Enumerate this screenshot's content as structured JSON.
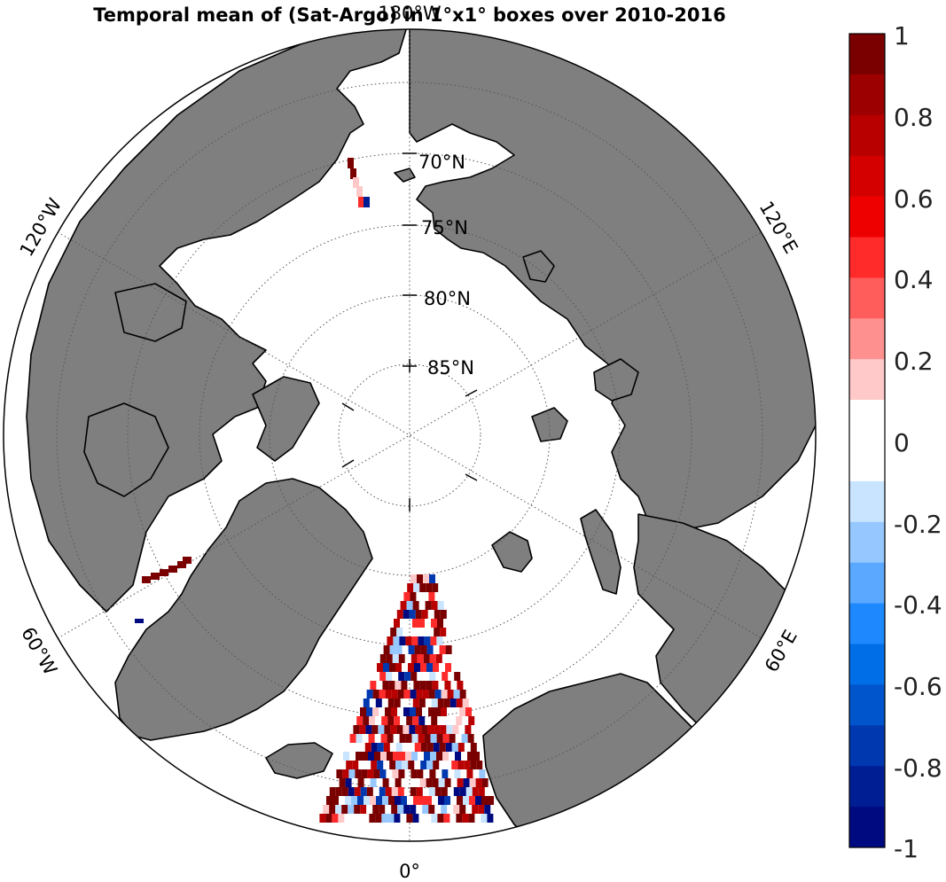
{
  "title": "Temporal mean of (Sat-Argo) in 1°x1° boxes over 2010-2016",
  "map": {
    "projection": "north polar stereographic",
    "latitude_labels": [
      {
        "lat": 70,
        "text": "70°N"
      },
      {
        "lat": 75,
        "text": "75°N"
      },
      {
        "lat": 80,
        "text": "80°N"
      },
      {
        "lat": 85,
        "text": "85°N"
      }
    ],
    "longitude_labels": [
      {
        "lon": 180,
        "text": "180°W"
      },
      {
        "lon": 120,
        "text": "120°E"
      },
      {
        "lon": 60,
        "text": "60°E"
      },
      {
        "lon": 0,
        "text": "0°"
      },
      {
        "lon": -60,
        "text": "60°W"
      },
      {
        "lon": -120,
        "text": "120°W"
      }
    ],
    "colors": {
      "land": "#7f7f7f",
      "ocean": "#ffffff",
      "coast": "#000000"
    }
  },
  "colorbar": {
    "min": -1,
    "max": 1,
    "tick_labels": [
      "1",
      "0.8",
      "0.6",
      "0.4",
      "0.2",
      "0",
      "-0.2",
      "-0.4",
      "-0.6",
      "-0.8",
      "-1"
    ],
    "colors_top_to_bottom": [
      "#7a0000",
      "#9c0000",
      "#b80000",
      "#d40000",
      "#ee0000",
      "#ff2a2a",
      "#ff5c5c",
      "#ff9090",
      "#ffc9c9",
      "#ffffff",
      "#ffffff",
      "#c8e4ff",
      "#96c8ff",
      "#5aa8ff",
      "#1e88ff",
      "#006ee6",
      "#0054cc",
      "#0038b0",
      "#001e94",
      "#000a80"
    ]
  }
}
